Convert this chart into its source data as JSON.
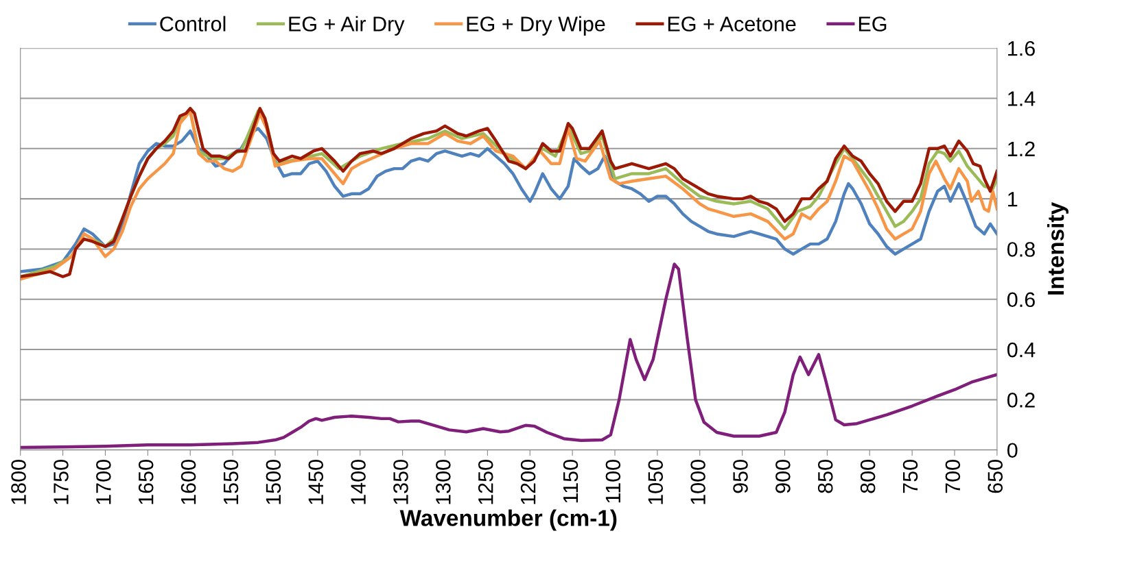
{
  "chart_data": {
    "type": "line",
    "xlabel": "Wavenumber (cm-1)",
    "ylabel": "Intensity",
    "xlim": [
      1800,
      650
    ],
    "xticks": [
      1800,
      1750,
      1700,
      1650,
      1600,
      1550,
      1500,
      1450,
      1400,
      1350,
      1300,
      1250,
      1200,
      1150,
      1100,
      1050,
      1000,
      950,
      900,
      850,
      800,
      750,
      700,
      650
    ],
    "ylim": [
      0,
      1.6
    ],
    "yticks": [
      0,
      0.2,
      0.4,
      0.6,
      0.8,
      1,
      1.2,
      1.4,
      1.6
    ],
    "grid": "y",
    "legend": "top",
    "marker": "none",
    "line_style": "solid",
    "series": [
      {
        "name": "Control",
        "color": "#4f81bd",
        "x": [
          1800,
          1775,
          1750,
          1735,
          1725,
          1715,
          1700,
          1690,
          1680,
          1670,
          1660,
          1650,
          1640,
          1630,
          1620,
          1610,
          1600,
          1590,
          1580,
          1570,
          1560,
          1550,
          1540,
          1530,
          1520,
          1510,
          1500,
          1490,
          1480,
          1470,
          1460,
          1450,
          1440,
          1430,
          1420,
          1410,
          1400,
          1390,
          1380,
          1370,
          1360,
          1350,
          1340,
          1330,
          1320,
          1310,
          1300,
          1290,
          1280,
          1270,
          1260,
          1250,
          1240,
          1230,
          1220,
          1210,
          1200,
          1195,
          1185,
          1175,
          1165,
          1155,
          1148,
          1140,
          1130,
          1120,
          1112,
          1100,
          1090,
          1080,
          1070,
          1060,
          1050,
          1040,
          1030,
          1020,
          1010,
          1000,
          990,
          980,
          960,
          950,
          940,
          930,
          920,
          910,
          900,
          890,
          880,
          870,
          860,
          850,
          840,
          830,
          825,
          820,
          810,
          800,
          790,
          780,
          770,
          760,
          750,
          740,
          730,
          720,
          712,
          705,
          695,
          685,
          675,
          665,
          658,
          650
        ],
        "values": [
          0.71,
          0.72,
          0.75,
          0.82,
          0.88,
          0.86,
          0.81,
          0.82,
          0.9,
          1.02,
          1.14,
          1.19,
          1.22,
          1.21,
          1.21,
          1.23,
          1.27,
          1.2,
          1.17,
          1.13,
          1.14,
          1.18,
          1.2,
          1.26,
          1.28,
          1.24,
          1.15,
          1.09,
          1.1,
          1.1,
          1.14,
          1.15,
          1.11,
          1.05,
          1.01,
          1.02,
          1.02,
          1.04,
          1.09,
          1.11,
          1.12,
          1.12,
          1.15,
          1.16,
          1.15,
          1.18,
          1.19,
          1.18,
          1.17,
          1.18,
          1.17,
          1.2,
          1.17,
          1.14,
          1.1,
          1.04,
          0.99,
          1.02,
          1.1,
          1.04,
          1.0,
          1.05,
          1.16,
          1.13,
          1.1,
          1.12,
          1.17,
          1.07,
          1.05,
          1.04,
          1.02,
          0.99,
          1.01,
          1.01,
          0.98,
          0.94,
          0.91,
          0.89,
          0.87,
          0.86,
          0.85,
          0.86,
          0.87,
          0.86,
          0.85,
          0.84,
          0.8,
          0.78,
          0.8,
          0.82,
          0.82,
          0.84,
          0.91,
          1.02,
          1.06,
          1.04,
          0.98,
          0.9,
          0.86,
          0.81,
          0.78,
          0.8,
          0.82,
          0.84,
          0.95,
          1.03,
          1.05,
          0.99,
          1.06,
          0.98,
          0.89,
          0.86,
          0.9,
          0.86
        ]
      },
      {
        "name": "EG + Air Dry",
        "color": "#9bbb59",
        "x": [
          1800,
          1760,
          1740,
          1725,
          1700,
          1690,
          1680,
          1670,
          1660,
          1650,
          1640,
          1630,
          1620,
          1612,
          1600,
          1590,
          1580,
          1570,
          1560,
          1550,
          1540,
          1530,
          1520,
          1510,
          1500,
          1470,
          1445,
          1425,
          1400,
          1375,
          1350,
          1320,
          1300,
          1280,
          1255,
          1230,
          1205,
          1185,
          1170,
          1155,
          1140,
          1130,
          1115,
          1100,
          1080,
          1060,
          1040,
          1020,
          1000,
          980,
          960,
          940,
          920,
          900,
          885,
          870,
          860,
          840,
          830,
          820,
          800,
          780,
          770,
          760,
          750,
          740,
          730,
          720,
          712,
          705,
          695,
          685,
          675,
          665,
          655,
          650
        ],
        "values": [
          0.69,
          0.73,
          0.77,
          0.86,
          0.81,
          0.84,
          0.92,
          1.01,
          1.09,
          1.16,
          1.2,
          1.22,
          1.25,
          1.32,
          1.35,
          1.19,
          1.17,
          1.16,
          1.16,
          1.18,
          1.19,
          1.27,
          1.35,
          1.3,
          1.14,
          1.16,
          1.18,
          1.12,
          1.17,
          1.2,
          1.22,
          1.24,
          1.27,
          1.24,
          1.26,
          1.18,
          1.12,
          1.2,
          1.17,
          1.29,
          1.18,
          1.19,
          1.25,
          1.08,
          1.1,
          1.1,
          1.12,
          1.06,
          1.01,
          0.99,
          0.98,
          0.99,
          0.96,
          0.88,
          0.95,
          0.97,
          1.01,
          1.14,
          1.2,
          1.16,
          1.07,
          0.95,
          0.89,
          0.91,
          0.95,
          1.0,
          1.14,
          1.19,
          1.18,
          1.15,
          1.19,
          1.13,
          1.09,
          1.05,
          1.04,
          1.08
        ]
      },
      {
        "name": "EG + Dry Wipe",
        "color": "#f79646",
        "x": [
          1800,
          1760,
          1740,
          1725,
          1715,
          1700,
          1690,
          1680,
          1670,
          1660,
          1650,
          1640,
          1630,
          1620,
          1612,
          1600,
          1590,
          1580,
          1570,
          1560,
          1550,
          1540,
          1525,
          1518,
          1510,
          1500,
          1480,
          1460,
          1445,
          1430,
          1420,
          1410,
          1400,
          1380,
          1360,
          1340,
          1320,
          1300,
          1285,
          1270,
          1255,
          1240,
          1220,
          1205,
          1188,
          1175,
          1165,
          1155,
          1145,
          1135,
          1118,
          1105,
          1095,
          1080,
          1060,
          1040,
          1020,
          1000,
          990,
          980,
          960,
          940,
          920,
          900,
          890,
          880,
          870,
          860,
          850,
          840,
          830,
          820,
          810,
          800,
          790,
          780,
          770,
          760,
          750,
          740,
          730,
          722,
          712,
          705,
          695,
          685,
          680,
          672,
          665,
          660,
          655,
          650
        ],
        "values": [
          0.68,
          0.72,
          0.77,
          0.86,
          0.84,
          0.77,
          0.8,
          0.87,
          0.97,
          1.04,
          1.08,
          1.11,
          1.14,
          1.18,
          1.3,
          1.35,
          1.18,
          1.15,
          1.15,
          1.12,
          1.11,
          1.13,
          1.27,
          1.34,
          1.28,
          1.13,
          1.15,
          1.16,
          1.16,
          1.1,
          1.06,
          1.12,
          1.14,
          1.17,
          1.2,
          1.22,
          1.22,
          1.26,
          1.23,
          1.22,
          1.25,
          1.19,
          1.17,
          1.12,
          1.19,
          1.14,
          1.14,
          1.28,
          1.16,
          1.15,
          1.23,
          1.08,
          1.06,
          1.07,
          1.08,
          1.09,
          1.04,
          0.98,
          0.96,
          0.95,
          0.93,
          0.94,
          0.91,
          0.84,
          0.86,
          0.94,
          0.92,
          0.96,
          0.99,
          1.07,
          1.17,
          1.15,
          1.09,
          1.03,
          0.96,
          0.88,
          0.84,
          0.86,
          0.88,
          0.95,
          1.1,
          1.15,
          1.08,
          1.04,
          1.12,
          1.07,
          0.99,
          1.03,
          0.96,
          0.95,
          1.03,
          0.96
        ]
      },
      {
        "name": "EG + Acetone",
        "color": "#9c1a05",
        "x": [
          1800,
          1780,
          1765,
          1750,
          1742,
          1735,
          1725,
          1715,
          1700,
          1690,
          1680,
          1670,
          1660,
          1650,
          1640,
          1630,
          1620,
          1612,
          1605,
          1600,
          1595,
          1585,
          1575,
          1565,
          1555,
          1545,
          1535,
          1525,
          1518,
          1512,
          1502,
          1495,
          1480,
          1470,
          1455,
          1445,
          1430,
          1420,
          1410,
          1400,
          1385,
          1375,
          1360,
          1340,
          1325,
          1310,
          1300,
          1285,
          1275,
          1260,
          1250,
          1240,
          1225,
          1215,
          1205,
          1195,
          1185,
          1175,
          1165,
          1155,
          1150,
          1140,
          1130,
          1115,
          1105,
          1100,
          1080,
          1060,
          1040,
          1030,
          1020,
          1010,
          1000,
          990,
          980,
          960,
          950,
          940,
          930,
          920,
          910,
          900,
          890,
          880,
          870,
          860,
          850,
          840,
          830,
          820,
          810,
          800,
          790,
          780,
          770,
          760,
          750,
          740,
          730,
          720,
          712,
          705,
          695,
          685,
          678,
          670,
          665,
          658,
          650
        ],
        "values": [
          0.69,
          0.7,
          0.71,
          0.69,
          0.7,
          0.8,
          0.84,
          0.83,
          0.81,
          0.83,
          0.92,
          1.01,
          1.09,
          1.16,
          1.2,
          1.23,
          1.27,
          1.33,
          1.34,
          1.36,
          1.34,
          1.2,
          1.17,
          1.17,
          1.16,
          1.19,
          1.19,
          1.29,
          1.36,
          1.32,
          1.18,
          1.15,
          1.17,
          1.16,
          1.19,
          1.2,
          1.15,
          1.11,
          1.15,
          1.18,
          1.19,
          1.18,
          1.2,
          1.24,
          1.26,
          1.27,
          1.29,
          1.26,
          1.25,
          1.27,
          1.28,
          1.23,
          1.15,
          1.14,
          1.12,
          1.15,
          1.22,
          1.19,
          1.19,
          1.3,
          1.28,
          1.2,
          1.2,
          1.27,
          1.15,
          1.12,
          1.14,
          1.12,
          1.14,
          1.12,
          1.08,
          1.06,
          1.04,
          1.02,
          1.01,
          1.0,
          1.0,
          1.01,
          0.99,
          0.98,
          0.96,
          0.91,
          0.94,
          1.0,
          1.0,
          1.04,
          1.07,
          1.16,
          1.21,
          1.17,
          1.15,
          1.1,
          1.06,
          0.99,
          0.95,
          0.99,
          0.99,
          1.06,
          1.2,
          1.2,
          1.21,
          1.17,
          1.23,
          1.19,
          1.14,
          1.13,
          1.08,
          1.03,
          1.11
        ]
      },
      {
        "name": "EG",
        "color": "#7f1f7a",
        "x": [
          1800,
          1750,
          1700,
          1650,
          1600,
          1550,
          1520,
          1500,
          1490,
          1480,
          1470,
          1460,
          1452,
          1445,
          1430,
          1410,
          1390,
          1375,
          1365,
          1355,
          1340,
          1330,
          1310,
          1295,
          1275,
          1255,
          1235,
          1225,
          1205,
          1195,
          1180,
          1160,
          1140,
          1115,
          1105,
          1095,
          1082,
          1075,
          1065,
          1055,
          1040,
          1030,
          1025,
          1015,
          1005,
          995,
          980,
          960,
          930,
          910,
          900,
          890,
          882,
          872,
          860,
          852,
          840,
          830,
          815,
          800,
          780,
          750,
          720,
          700,
          680,
          650
        ],
        "values": [
          0.01,
          0.012,
          0.015,
          0.02,
          0.02,
          0.025,
          0.03,
          0.04,
          0.05,
          0.07,
          0.09,
          0.115,
          0.125,
          0.118,
          0.13,
          0.135,
          0.13,
          0.125,
          0.125,
          0.112,
          0.115,
          0.115,
          0.095,
          0.08,
          0.072,
          0.085,
          0.072,
          0.075,
          0.098,
          0.095,
          0.07,
          0.045,
          0.038,
          0.04,
          0.06,
          0.2,
          0.44,
          0.36,
          0.28,
          0.36,
          0.6,
          0.74,
          0.72,
          0.45,
          0.2,
          0.11,
          0.07,
          0.055,
          0.055,
          0.07,
          0.15,
          0.3,
          0.37,
          0.3,
          0.38,
          0.28,
          0.12,
          0.1,
          0.105,
          0.12,
          0.14,
          0.175,
          0.215,
          0.24,
          0.27,
          0.3
        ]
      }
    ]
  }
}
